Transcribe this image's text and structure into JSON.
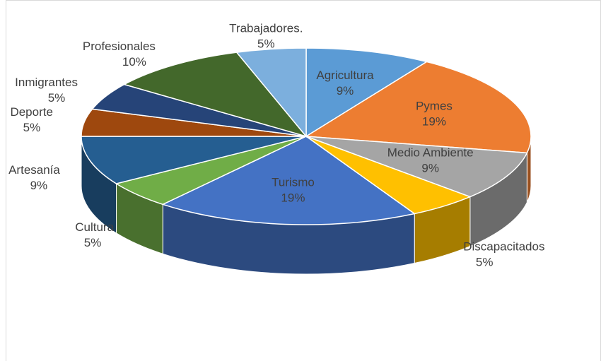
{
  "chart_data": {
    "type": "pie",
    "categories": [
      "Agricultura",
      "Pymes",
      "Medio Ambiente",
      "Discapacitados",
      "Turismo",
      "Cultura",
      "Artesanía",
      "Deporte",
      "Inmigrantes",
      "Profesionales",
      "Trabajadores."
    ],
    "values": [
      9,
      19,
      9,
      5,
      19,
      5,
      9,
      5,
      5,
      10,
      5
    ],
    "value_labels": [
      "9%",
      "19%",
      "9%",
      "5%",
      "19%",
      "5%",
      "9%",
      "5%",
      "5%",
      "10%",
      "5%"
    ],
    "colors": [
      "#5b9bd5",
      "#ed7d31",
      "#a5a5a5",
      "#ffc000",
      "#4472c4",
      "#70ad47",
      "#255e91",
      "#9e480e",
      "#264478",
      "#43682b",
      "#7cafdd"
    ]
  }
}
